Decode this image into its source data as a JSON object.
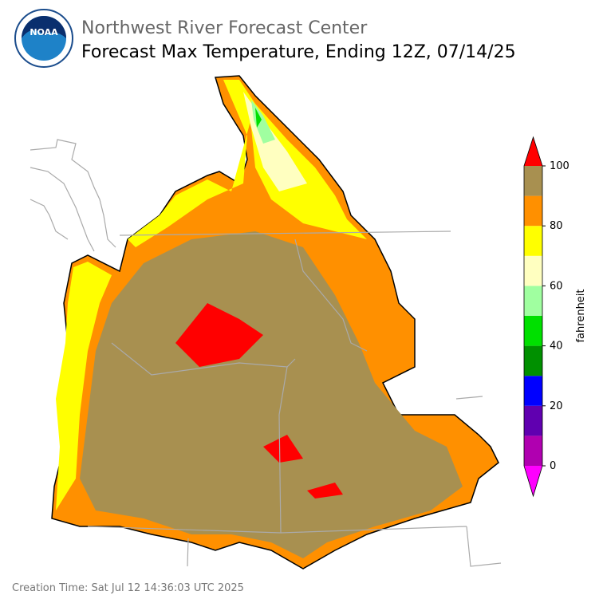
{
  "header": {
    "org": "Northwest River Forecast Center",
    "title": "Forecast Max Temperature, Ending 12Z, 07/14/25"
  },
  "logo": {
    "text": "NOAA"
  },
  "colorbar": {
    "label": "fahrenheit",
    "lim": [
      0,
      100
    ],
    "ticks": [
      0,
      20,
      40,
      60,
      80,
      100
    ],
    "colors": [
      "#b000b0",
      "#6000b0",
      "#0000ff",
      "#009000",
      "#00e000",
      "#a0ffa0",
      "#ffffc0",
      "#ffff00",
      "#ff9000",
      "#a89050"
    ],
    "under_color": "#ff00ff",
    "over_color": "#ff0000"
  },
  "footer": {
    "creation": "Creation Time: Sat Jul 12 14:36:03 UTC 2025"
  }
}
